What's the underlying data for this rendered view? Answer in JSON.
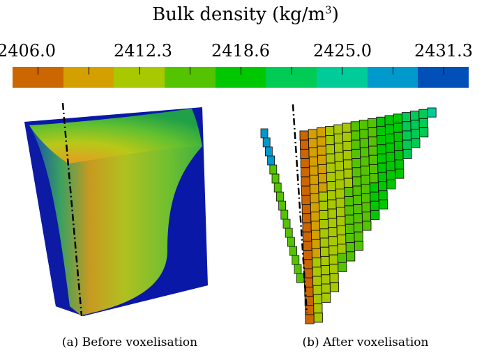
{
  "colorbar": {
    "title_prefix": "Bulk density (kg/m",
    "title_sup": "3",
    "title_suffix": ")",
    "ticks": [
      "2406.0",
      "2412.3",
      "2418.6",
      "2425.0",
      "2431.3"
    ],
    "colors": [
      "#cc6600",
      "#d4a000",
      "#a8c800",
      "#55c400",
      "#00c800",
      "#00cc55",
      "#00cc99",
      "#0099cc",
      "#0050b8"
    ]
  },
  "panels": {
    "a": {
      "caption": "(a) Before voxelisation"
    },
    "b": {
      "caption": "(b) After voxelisation"
    }
  }
}
